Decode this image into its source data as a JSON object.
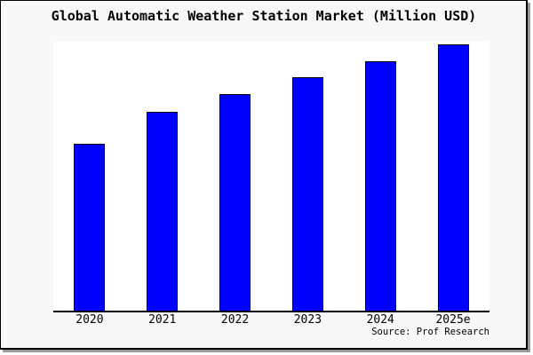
{
  "chart_data": {
    "type": "bar",
    "title": "Global Automatic Weather Station Market (Million USD)",
    "categories": [
      "2020",
      "2021",
      "2022",
      "2023",
      "2024",
      "2025e"
    ],
    "values": [
      62.7,
      74.7,
      81.3,
      87.7,
      93.7,
      100
    ],
    "values_note": "relative index estimated from bar heights; 2025e = 100 (chart shows no y-axis tick labels)",
    "xlabel": "",
    "ylabel": "",
    "ylim": [
      0,
      101
    ],
    "grid": false,
    "legend": false,
    "bar_color": "#0000ff",
    "bar_edge_color": "#000000",
    "figure_background": "#f8f8f8",
    "plot_background": "#ffffff",
    "source": "Source: Prof Research"
  }
}
